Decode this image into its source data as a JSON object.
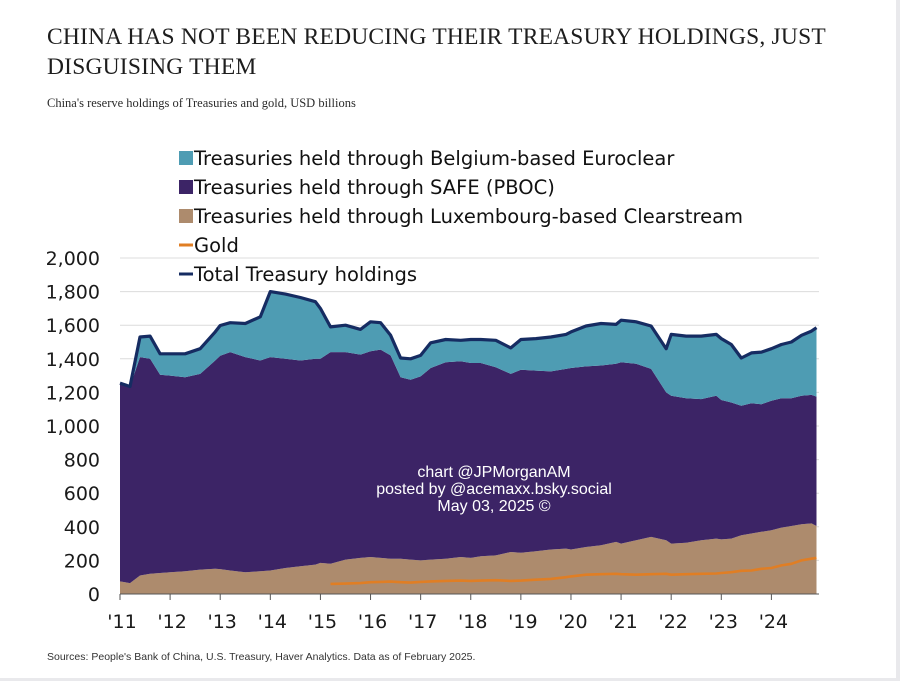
{
  "title": "CHINA HAS NOT BEEN REDUCING THEIR TREASURY HOLDINGS, JUST DISGUISING THEM",
  "subtitle": "China's reserve holdings of Treasuries and gold, USD billions",
  "source": "Sources: People's Bank of China, U.S. Treasury, Haver Analytics. Data as of February 2025.",
  "watermark": [
    "chart @JPMorganAM",
    "posted by @acemaxx.bsky.social",
    "May 03, 2025 ©"
  ],
  "colors": {
    "euroclear": "#4e9cb3",
    "safe": "#3c2466",
    "clearstream": "#ad8b6d",
    "gold": "#e07e24",
    "total": "#162c62"
  },
  "chart_data": {
    "type": "area",
    "stacked": true,
    "x": [
      2011.0,
      2011.2,
      2011.4,
      2011.6,
      2011.8,
      2012.0,
      2012.3,
      2012.6,
      2012.9,
      2013.0,
      2013.2,
      2013.5,
      2013.8,
      2014.0,
      2014.3,
      2014.6,
      2014.9,
      2015.0,
      2015.2,
      2015.5,
      2015.8,
      2016.0,
      2016.2,
      2016.4,
      2016.6,
      2016.8,
      2017.0,
      2017.2,
      2017.5,
      2017.8,
      2018.0,
      2018.2,
      2018.5,
      2018.8,
      2019.0,
      2019.3,
      2019.6,
      2019.9,
      2020.0,
      2020.3,
      2020.6,
      2020.9,
      2021.0,
      2021.3,
      2021.6,
      2021.9,
      2022.0,
      2022.3,
      2022.6,
      2022.9,
      2023.0,
      2023.2,
      2023.4,
      2023.6,
      2023.8,
      2024.0,
      2024.2,
      2024.4,
      2024.6,
      2024.8,
      2024.9
    ],
    "series": [
      {
        "name": "Treasuries held through Luxembourg-based Clearstream",
        "values": [
          75,
          65,
          110,
          120,
          125,
          130,
          135,
          145,
          150,
          148,
          140,
          130,
          135,
          140,
          155,
          165,
          175,
          185,
          180,
          205,
          215,
          220,
          215,
          210,
          210,
          205,
          200,
          205,
          210,
          220,
          215,
          225,
          230,
          250,
          245,
          255,
          265,
          270,
          265,
          280,
          290,
          310,
          300,
          320,
          340,
          320,
          300,
          305,
          320,
          330,
          325,
          330,
          350,
          360,
          370,
          380,
          395,
          405,
          415,
          420,
          405
        ]
      },
      {
        "name": "Treasuries held through SAFE (PBOC)",
        "values": [
          1180,
          1170,
          1300,
          1280,
          1180,
          1170,
          1155,
          1165,
          1240,
          1270,
          1300,
          1280,
          1255,
          1270,
          1245,
          1225,
          1225,
          1215,
          1260,
          1235,
          1210,
          1225,
          1240,
          1210,
          1080,
          1070,
          1095,
          1140,
          1170,
          1165,
          1160,
          1150,
          1120,
          1060,
          1090,
          1075,
          1060,
          1070,
          1080,
          1075,
          1070,
          1060,
          1080,
          1050,
          1000,
          880,
          880,
          860,
          840,
          850,
          830,
          810,
          770,
          775,
          760,
          770,
          770,
          760,
          765,
          765,
          770
        ]
      },
      {
        "name": "Treasuries held through Belgium-based Euroclear",
        "values": [
          0,
          0,
          120,
          135,
          125,
          130,
          140,
          150,
          170,
          180,
          175,
          200,
          260,
          390,
          385,
          375,
          340,
          300,
          150,
          160,
          150,
          175,
          160,
          120,
          115,
          125,
          125,
          150,
          135,
          125,
          140,
          140,
          160,
          155,
          180,
          190,
          205,
          205,
          215,
          240,
          250,
          235,
          250,
          250,
          255,
          260,
          365,
          370,
          375,
          365,
          365,
          345,
          285,
          300,
          310,
          310,
          320,
          335,
          360,
          380,
          410
        ]
      },
      {
        "name": "Gold",
        "values": [
          null,
          null,
          null,
          null,
          null,
          null,
          null,
          null,
          null,
          null,
          null,
          null,
          null,
          null,
          null,
          null,
          null,
          null,
          60,
          62,
          65,
          70,
          72,
          74,
          70,
          68,
          72,
          75,
          78,
          80,
          78,
          80,
          82,
          78,
          80,
          85,
          90,
          100,
          105,
          115,
          118,
          120,
          118,
          115,
          118,
          120,
          115,
          118,
          120,
          122,
          125,
          130,
          138,
          140,
          150,
          155,
          170,
          180,
          200,
          210,
          215
        ]
      }
    ],
    "total_name": "Total Treasury holdings",
    "yticks": [
      "0",
      "200",
      "400",
      "600",
      "800",
      "1,000",
      "1,200",
      "1,400",
      "1,600",
      "1,800",
      "2,000"
    ],
    "xticks": [
      "'11",
      "'12",
      "'13",
      "'14",
      "'15",
      "'16",
      "'17",
      "'18",
      "'19",
      "'20",
      "'21",
      "'22",
      "'23",
      "'24"
    ],
    "ylim": [
      0,
      2000
    ],
    "xlim": [
      2011.0,
      2024.95
    ],
    "legend": "top-left"
  }
}
